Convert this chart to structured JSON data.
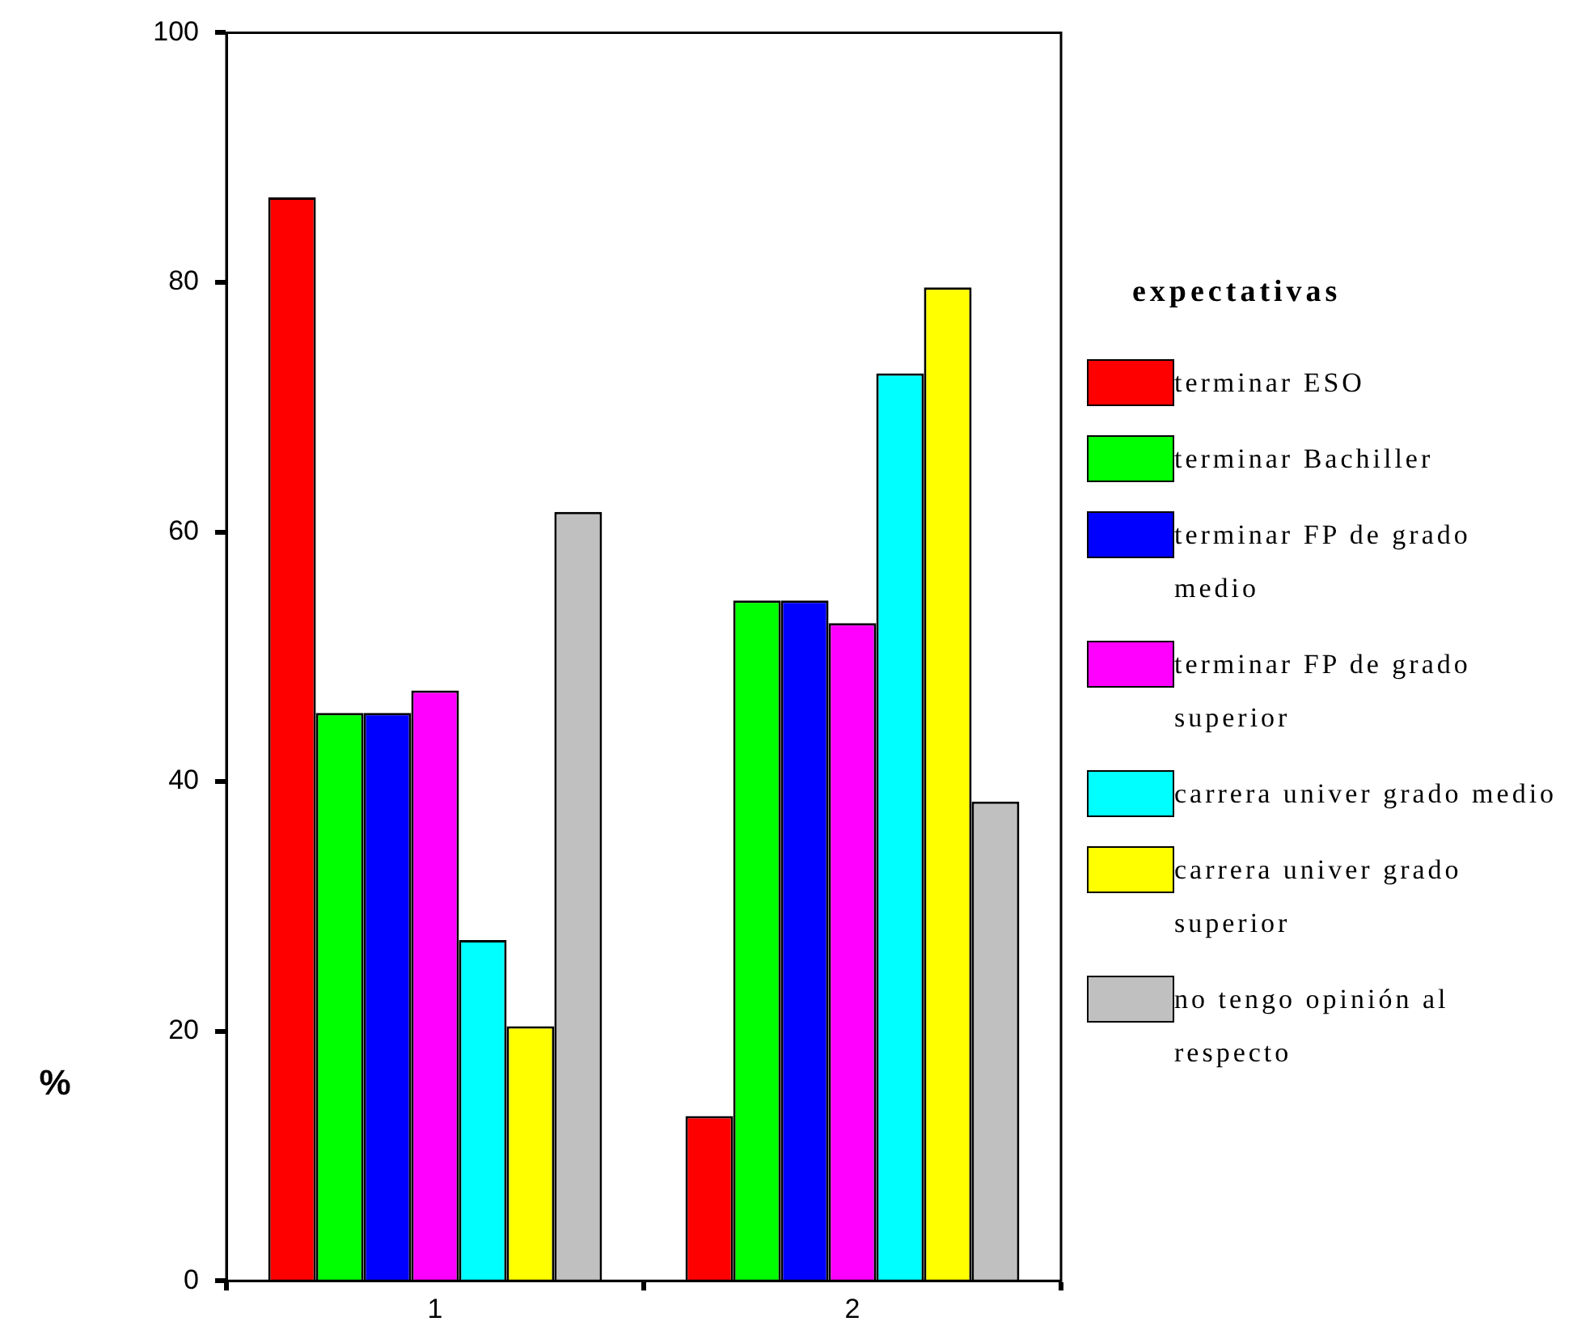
{
  "chart_data": {
    "type": "bar",
    "ylabel": "%",
    "legend_title": "expectativas",
    "categories": [
      "1",
      "2"
    ],
    "series": [
      {
        "name": "terminar ESO",
        "color": "#ff0000",
        "values": [
          86.8,
          13.2
        ]
      },
      {
        "name": "terminar Bachiller",
        "color": "#00ff00",
        "values": [
          45.5,
          54.5
        ]
      },
      {
        "name": "terminar FP de grado medio",
        "color": "#0000ff",
        "values": [
          45.5,
          54.5
        ]
      },
      {
        "name": "terminar FP de grado superior",
        "color": "#ff00ff",
        "values": [
          47.3,
          52.7
        ]
      },
      {
        "name": "carrera univer grado medio",
        "color": "#00ffff",
        "values": [
          27.3,
          72.7
        ]
      },
      {
        "name": "carrera univer grado superior",
        "color": "#ffff00",
        "values": [
          20.4,
          79.6
        ]
      },
      {
        "name": "no tengo opinión al respecto",
        "color": "#c0c0c0",
        "values": [
          61.6,
          38.4
        ]
      }
    ],
    "ylim": [
      0,
      100
    ],
    "yticks": [
      0,
      20,
      40,
      60,
      80,
      100
    ],
    "grid": false,
    "legend": "right"
  }
}
